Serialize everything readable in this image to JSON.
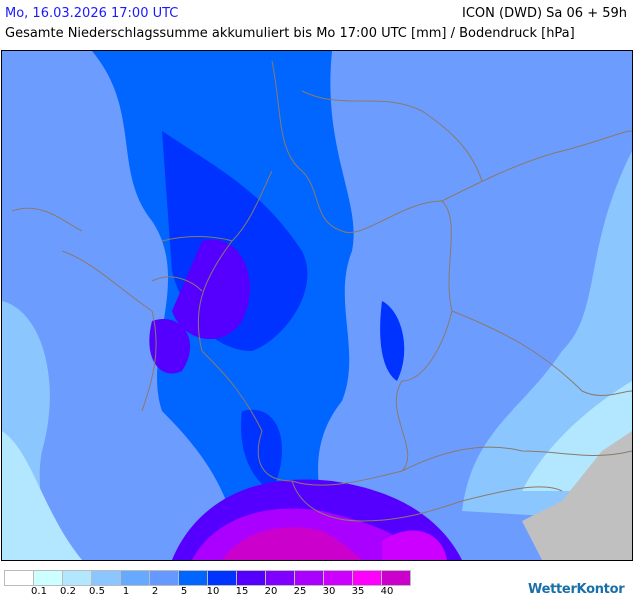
{
  "header": {
    "date": "Mo, 16.03.2026 17:00 UTC",
    "model": "ICON (DWD) Sa 06 + 59h",
    "subtitle": "Gesamte Niederschlagssumme akkumuliert bis Mo 17:00 UTC [mm] / Bodendruck [hPa]"
  },
  "legend": {
    "colors": [
      "#ffffff",
      "#ccffff",
      "#b3e6ff",
      "#8cc6ff",
      "#66aaff",
      "#6699ff",
      "#0066ff",
      "#0033ff",
      "#5500ff",
      "#8000ff",
      "#aa00ff",
      "#cc00ff",
      "#ff00ff",
      "#cc00cc"
    ],
    "labels": [
      "0.1",
      "0.2",
      "0.5",
      "1",
      "2",
      "5",
      "10",
      "15",
      "20",
      "25",
      "30",
      "35",
      "40"
    ]
  },
  "logo": "WetterKontor",
  "map": {
    "outside_domain_color": "#c0c0c0",
    "border_color": "#8a7a6a"
  }
}
